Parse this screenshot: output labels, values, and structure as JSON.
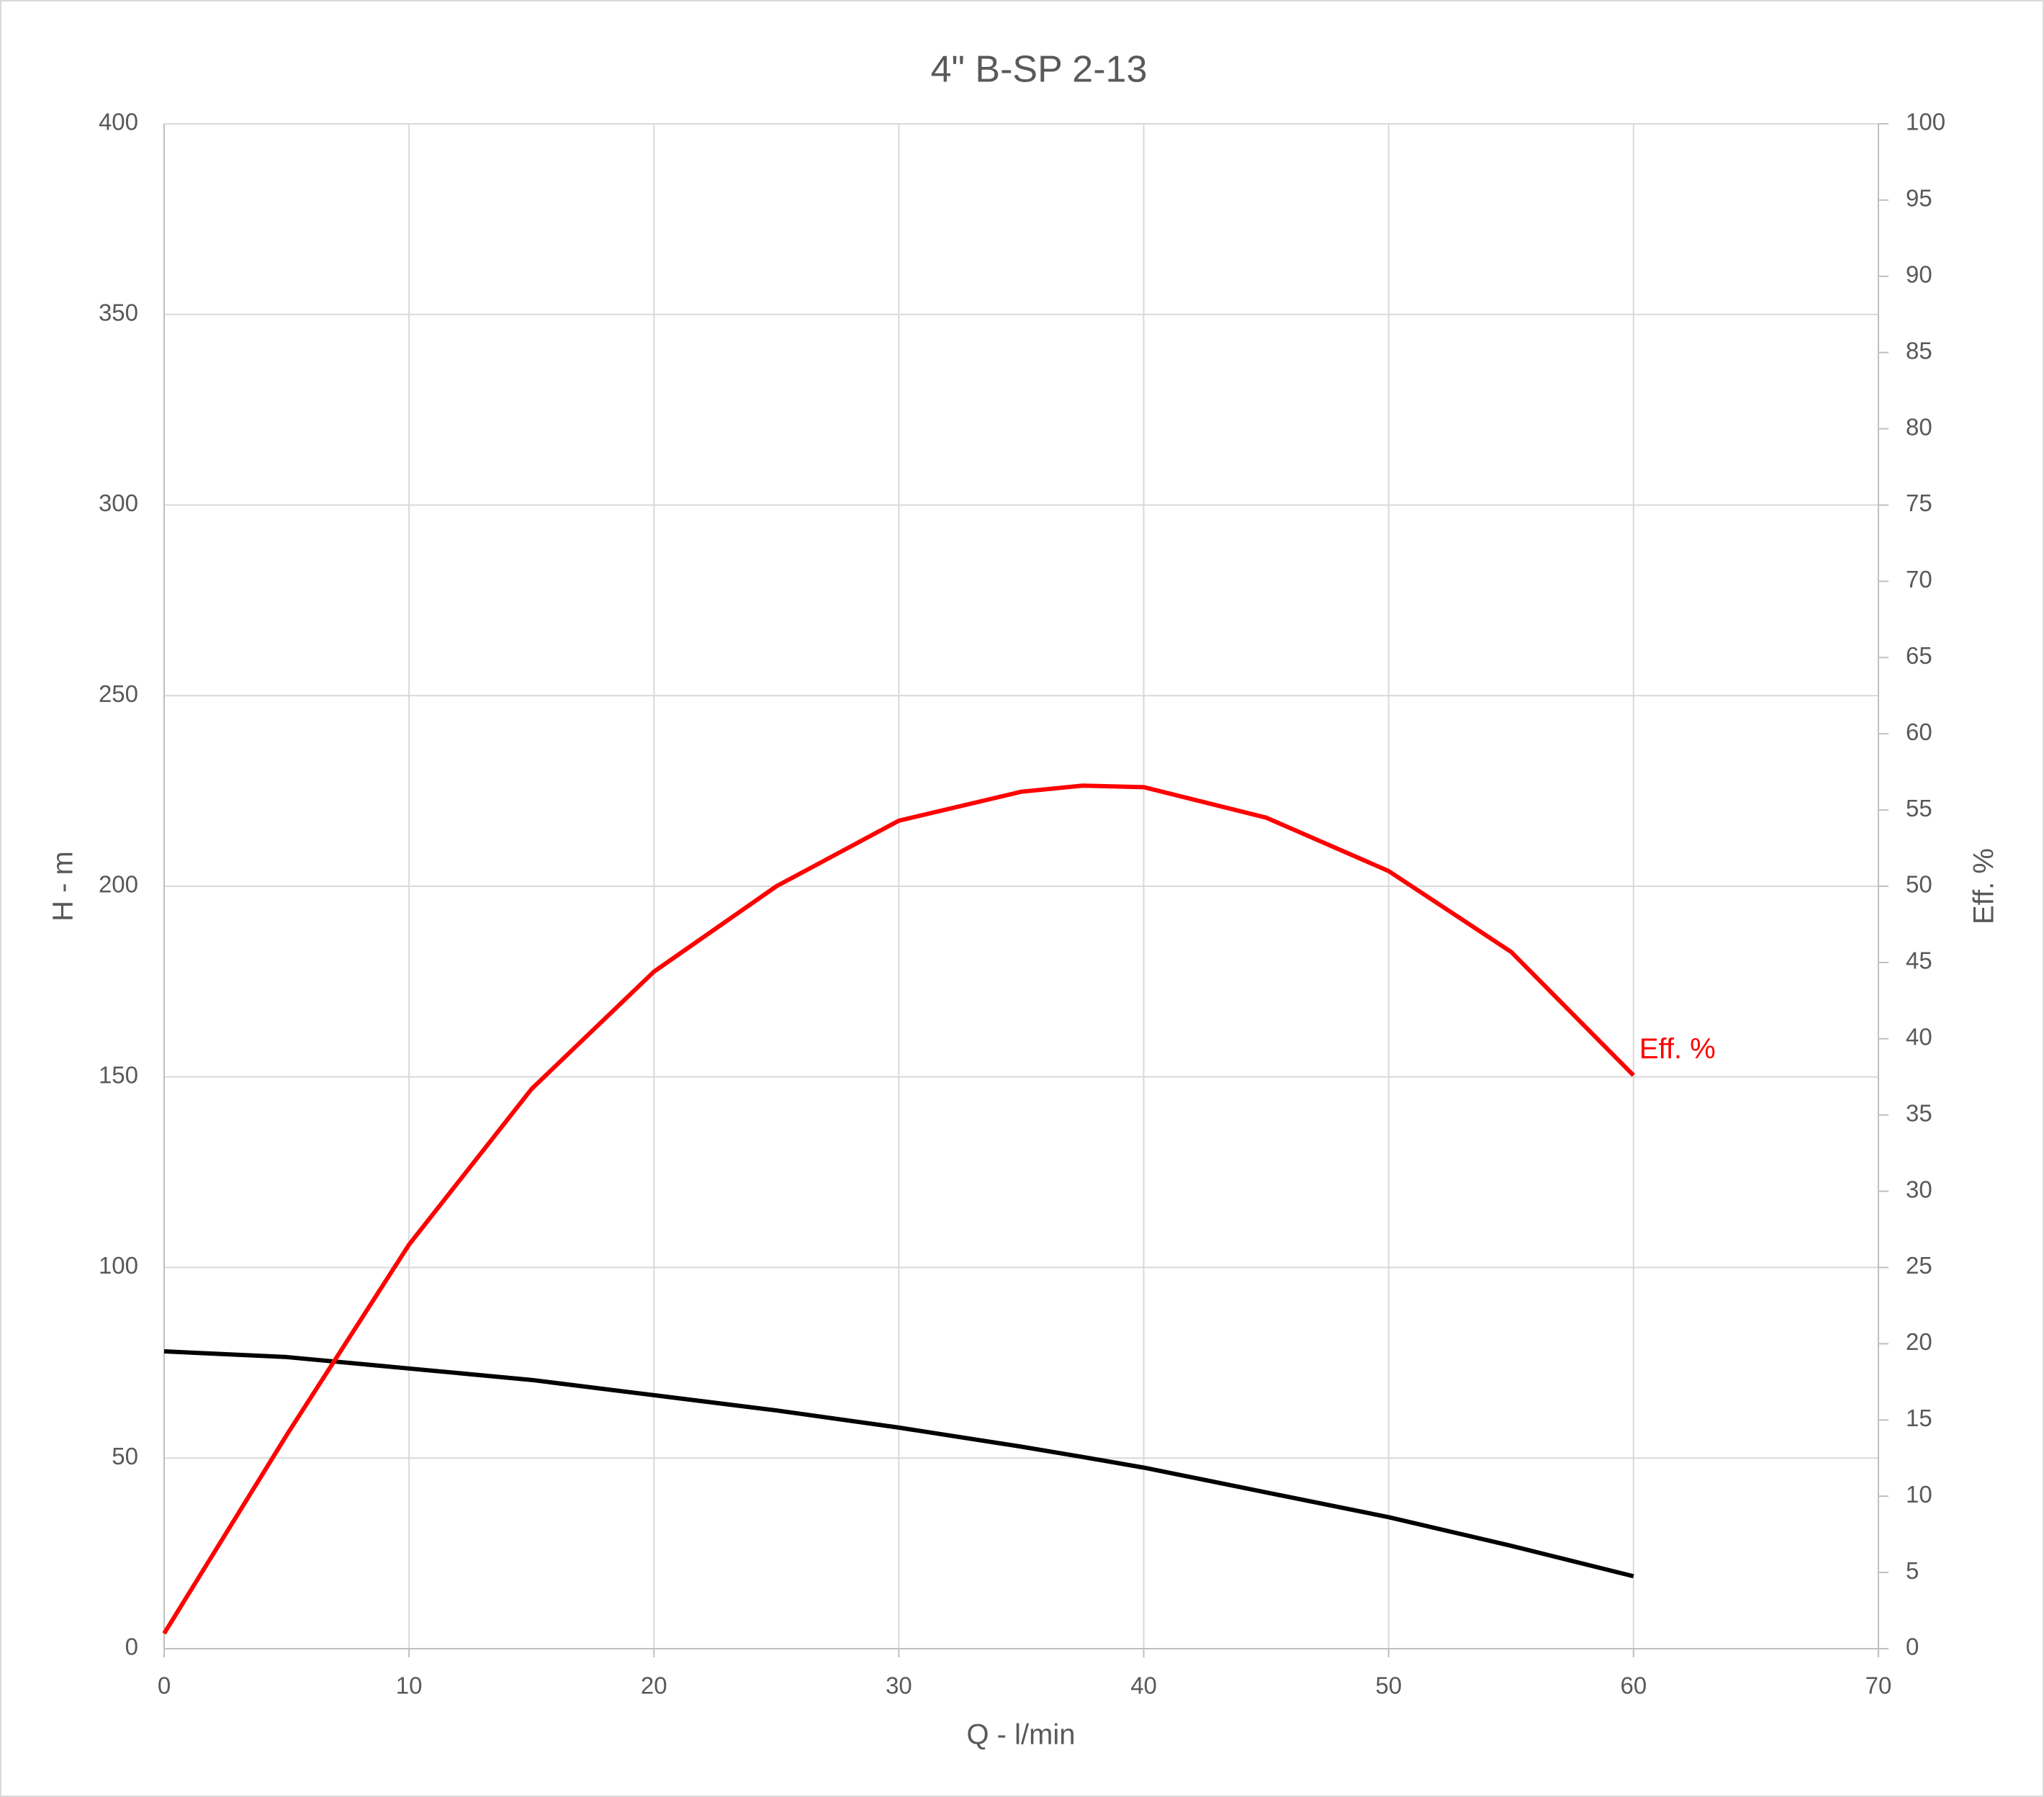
{
  "chart_data": {
    "type": "line",
    "title": "4\" B-SP 2-13",
    "x_label": "Q - l/min",
    "y_label": "H - m",
    "y2_label": "Eff. %",
    "x": [
      0,
      5,
      10,
      15,
      20,
      25,
      30,
      35,
      37.5,
      40,
      45,
      50,
      55,
      60
    ],
    "series": [
      {
        "color": "#000000",
        "values": [
          78,
          76.5,
          73.5,
          70.5,
          66.5,
          62.5,
          58,
          53,
          50.3,
          47.5,
          41,
          34.5,
          27,
          19
        ]
      },
      {
        "name": "Eff. %",
        "color": "#ff0000",
        "axis": "y2",
        "values": [
          1,
          14,
          26.5,
          36.7,
          44.4,
          50,
          54.3,
          56.2,
          56.6,
          56.5,
          54.5,
          51,
          45.7,
          37.6
        ]
      }
    ],
    "xlim": [
      0,
      70
    ],
    "xticks": [
      0,
      10,
      20,
      30,
      40,
      50,
      60,
      70
    ],
    "ylim": [
      0,
      400
    ],
    "yticks": [
      0,
      50,
      100,
      150,
      200,
      250,
      300,
      350,
      400
    ],
    "y2lim": [
      0,
      100
    ],
    "y2ticks": [
      0,
      5,
      10,
      15,
      20,
      25,
      30,
      35,
      40,
      45,
      50,
      55,
      60,
      65,
      70,
      75,
      80,
      85,
      90,
      95,
      100
    ],
    "grid": true
  }
}
